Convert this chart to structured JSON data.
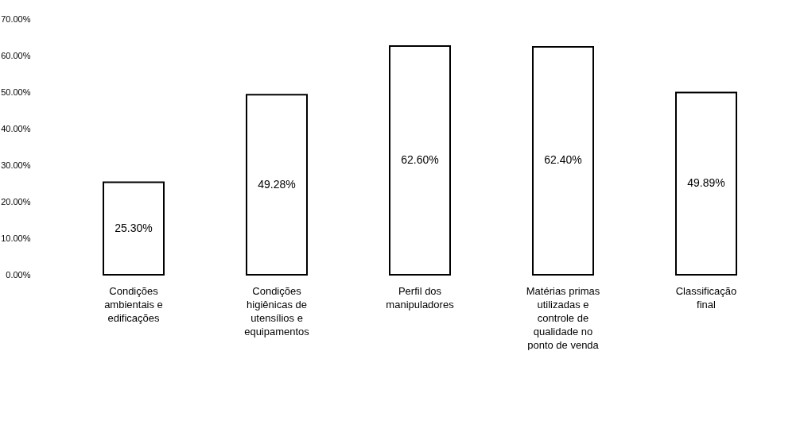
{
  "chart_data": {
    "type": "bar",
    "categories": [
      "Condições ambientais e edificações",
      "Condições higiênicas de utensílios e equipamentos",
      "Perfil dos manipuladores",
      "Matérias primas utilizadas e controle de qualidade no ponto de venda",
      "Classificação final"
    ],
    "values": [
      25.3,
      49.28,
      62.6,
      62.4,
      49.89
    ],
    "value_labels": [
      "25.30%",
      "49.28%",
      "62.60%",
      "62.40%",
      "49.89%"
    ],
    "color": "#ffffff",
    "ylim": [
      0,
      70
    ],
    "yticks": [
      {
        "value": 0,
        "label": "0.00%"
      },
      {
        "value": 10,
        "label": "10.00%"
      },
      {
        "value": 20,
        "label": "20.00%"
      },
      {
        "value": 30,
        "label": "30.00%"
      },
      {
        "value": 40,
        "label": "40.00%"
      },
      {
        "value": 50,
        "label": "50.00%"
      },
      {
        "value": 60,
        "label": "60.00%"
      },
      {
        "value": 70,
        "label": "70.00%"
      }
    ],
    "grid": false
  }
}
